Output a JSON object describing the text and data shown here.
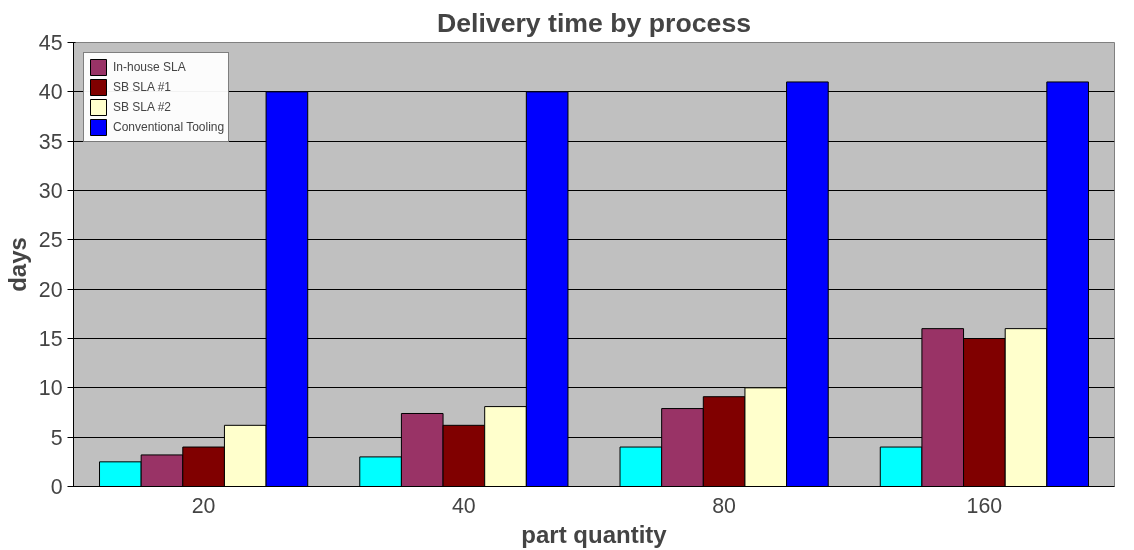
{
  "chart_data": {
    "type": "bar",
    "title": "Delivery time by process",
    "xlabel": "part quantity",
    "ylabel": "days",
    "categories": [
      "20",
      "40",
      "80",
      "160"
    ],
    "series": [
      {
        "color": "#00ffff",
        "values": [
          2.5,
          3,
          4,
          4
        ]
      },
      {
        "name": "In-house SLA",
        "color": "#993366",
        "values": [
          3.2,
          7.4,
          7.9,
          16
        ]
      },
      {
        "name": "SB SLA #1",
        "color": "#800000",
        "values": [
          4,
          6.2,
          9.1,
          15
        ]
      },
      {
        "name": "SB SLA #2",
        "color": "#ffffcc",
        "values": [
          6.2,
          8.1,
          10,
          16
        ]
      },
      {
        "name": "Conventional Tooling",
        "color": "#0000ff",
        "values": [
          40,
          40,
          41,
          41
        ]
      }
    ],
    "ylim": [
      0,
      45
    ],
    "yticks": [
      0,
      5,
      10,
      15,
      20,
      25,
      30,
      35,
      40,
      45
    ],
    "grid": "y",
    "legend": "top left"
  }
}
